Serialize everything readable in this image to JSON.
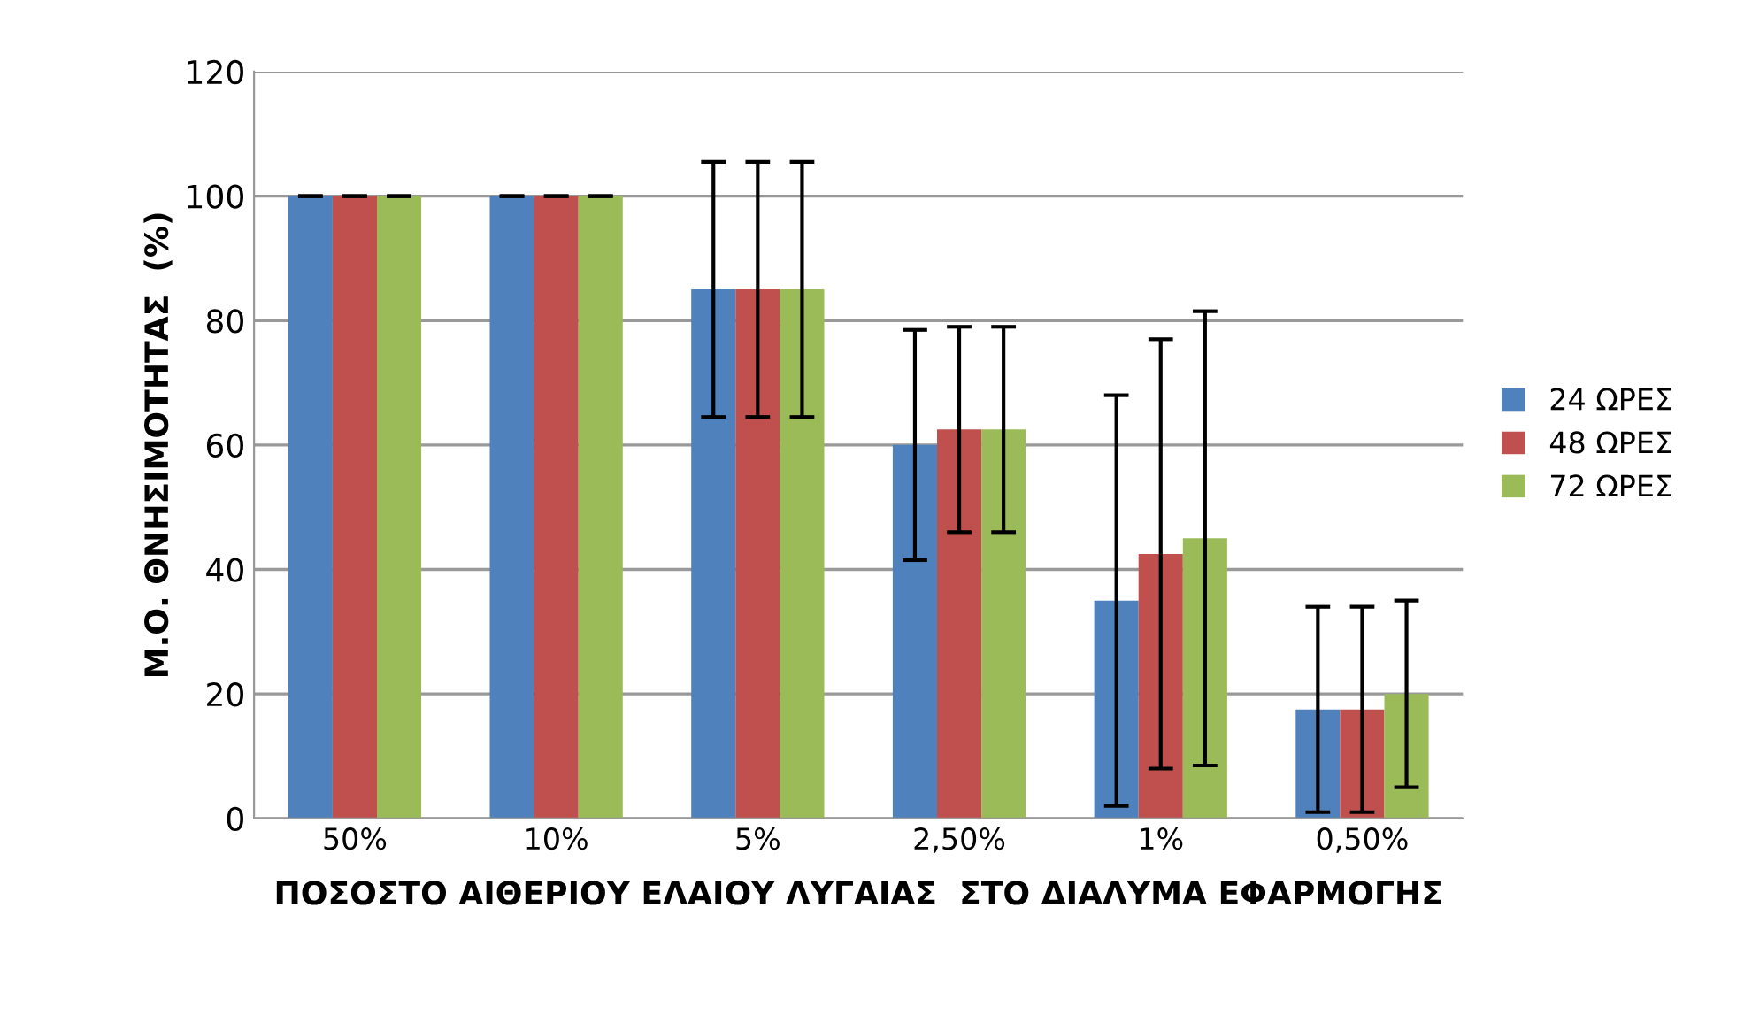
{
  "chart_data": {
    "type": "bar",
    "xlabel": "ΠΟΣΟΣΤΟ ΑΙΘΕΡΙΟΥ ΕΛΑΙΟΥ ΛΥΓΑΙΑΣ  ΣΤΟ ΔΙΑΛΥΜΑ ΕΦΑΡΜΟΓΗΣ",
    "ylabel": "Μ.Ο. ΘΝΗΣΙΜΟΤΗΤΑΣ  (%)",
    "categories": [
      "50%",
      "10%",
      "5%",
      "2,50%",
      "1%",
      "0,50%"
    ],
    "series": [
      {
        "name": "24 ΩΡΕΣ",
        "color": "#4f81bd",
        "values": [
          100,
          100,
          85,
          60,
          35,
          17.5
        ],
        "errors": [
          0,
          0,
          20.5,
          18.5,
          33,
          16.5
        ]
      },
      {
        "name": "48 ΩΡΕΣ",
        "color": "#c0504d",
        "values": [
          100,
          100,
          85,
          62.5,
          42.5,
          17.5
        ],
        "errors": [
          0,
          0,
          20.5,
          16.5,
          34.5,
          16.5
        ]
      },
      {
        "name": "72 ΩΡΕΣ",
        "color": "#9bbb59",
        "values": [
          100,
          100,
          85,
          62.5,
          45,
          20
        ],
        "errors": [
          0,
          0,
          20.5,
          16.5,
          36.5,
          15
        ]
      }
    ],
    "ylim": [
      0,
      120
    ],
    "yticks": [
      0,
      20,
      40,
      60,
      80,
      100,
      120
    ],
    "grid": "y",
    "legend": "right"
  }
}
